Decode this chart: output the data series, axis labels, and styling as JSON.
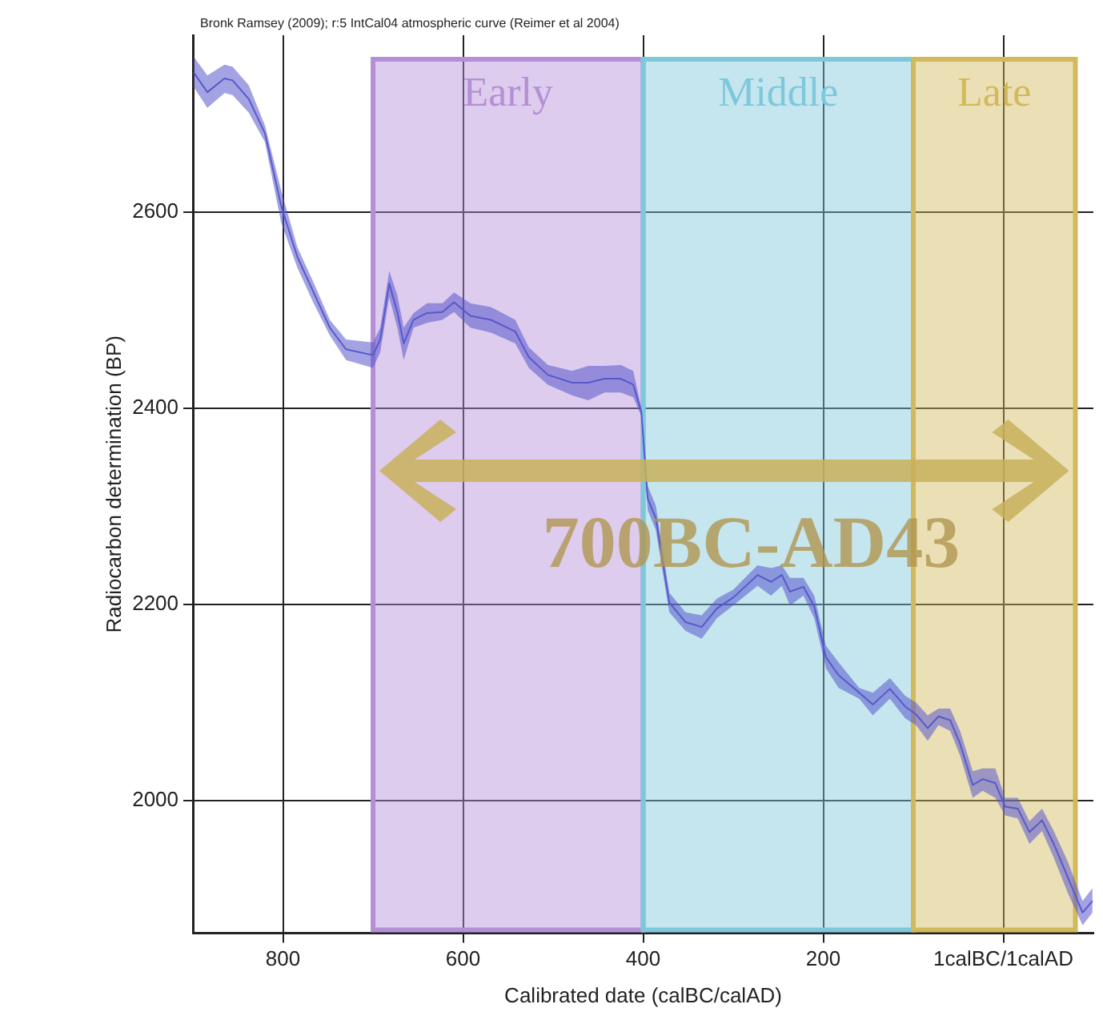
{
  "chart_data": {
    "type": "line",
    "xlabel": "Calibrated date (calBC/calAD)",
    "ylabel": "Radiocarbon determination (BP)",
    "annotations": [
      "Bronk Ramsey (2009); r:5 IntCal04 atmospheric curve (Reimer et al 2004)",
      "700BC-AD43"
    ],
    "xlim": [
      900,
      -100
    ],
    "xticks": [
      800,
      600,
      400,
      200,
      {
        "value": 0,
        "label": "1calBC/1calAD"
      }
    ],
    "ylim": [
      1865,
      2780
    ],
    "yticks": [
      2000,
      2200,
      2400,
      2600
    ],
    "grid": true,
    "legend": false,
    "marker": "none",
    "line_style": "solid",
    "bands": [
      {
        "axis": "x",
        "from": 700,
        "to": 400,
        "label": "Early",
        "color": "#b48fd6"
      },
      {
        "axis": "x",
        "from": 400,
        "to": 100,
        "label": "Middle",
        "color": "#7ec8dc"
      },
      {
        "axis": "x",
        "from": 100,
        "to": -80,
        "label": "Late",
        "color": "#d2b95a"
      }
    ],
    "series": [
      {
        "color": "#5858cc",
        "x": [
          899,
          884,
          865,
          856,
          838,
          820,
          802,
          784,
          766,
          748,
          730,
          700,
          692,
          682,
          673,
          666,
          655,
          640,
          623,
          610,
          592,
          569,
          542,
          527,
          506,
          479,
          461,
          443,
          425,
          411,
          402,
          395,
          386,
          371,
          353,
          335,
          318,
          300,
          273,
          258,
          246,
          237,
          222,
          210,
          197,
          183,
          160,
          145,
          126,
          109,
          97,
          84,
          72,
          59,
          48,
          34,
          23,
          9,
          -2,
          -16,
          -29,
          -43,
          -56,
          -72,
          -88,
          -99
        ],
        "values": [
          2742,
          2722,
          2736,
          2734,
          2715,
          2680,
          2606,
          2554,
          2518,
          2482,
          2460,
          2454,
          2470,
          2527,
          2498,
          2466,
          2490,
          2497,
          2498,
          2508,
          2494,
          2490,
          2478,
          2452,
          2434,
          2426,
          2426,
          2430,
          2430,
          2424,
          2396,
          2308,
          2288,
          2202,
          2182,
          2177,
          2196,
          2207,
          2230,
          2223,
          2230,
          2213,
          2218,
          2198,
          2146,
          2128,
          2110,
          2098,
          2114,
          2096,
          2088,
          2074,
          2086,
          2082,
          2058,
          2016,
          2022,
          2018,
          1994,
          1992,
          1968,
          1980,
          1956,
          1921,
          1886,
          1898
        ],
        "upper": [
          2758,
          2739,
          2750,
          2748,
          2729,
          2688,
          2622,
          2564,
          2528,
          2490,
          2470,
          2467,
          2482,
          2540,
          2515,
          2482,
          2497,
          2507,
          2507,
          2518,
          2507,
          2503,
          2490,
          2462,
          2444,
          2438,
          2443,
          2443,
          2444,
          2438,
          2400,
          2321,
          2301,
          2212,
          2192,
          2189,
          2206,
          2215,
          2240,
          2237,
          2240,
          2227,
          2227,
          2209,
          2158,
          2141,
          2115,
          2110,
          2125,
          2107,
          2100,
          2087,
          2094,
          2094,
          2071,
          2030,
          2033,
          2033,
          2003,
          2003,
          1979,
          1992,
          1969,
          1937,
          1898,
          1911
        ],
        "lower": [
          2727,
          2706,
          2721,
          2719,
          2701,
          2671,
          2589,
          2543,
          2507,
          2474,
          2449,
          2441,
          2457,
          2513,
          2482,
          2449,
          2482,
          2487,
          2490,
          2498,
          2482,
          2477,
          2466,
          2441,
          2424,
          2413,
          2408,
          2416,
          2416,
          2411,
          2392,
          2296,
          2276,
          2192,
          2173,
          2165,
          2186,
          2199,
          2219,
          2209,
          2219,
          2199,
          2209,
          2186,
          2135,
          2115,
          2104,
          2087,
          2104,
          2084,
          2077,
          2061,
          2077,
          2071,
          2046,
          2003,
          2010,
          2003,
          1985,
          1982,
          1956,
          1969,
          1942,
          1905,
          1873,
          1886
        ]
      }
    ]
  }
}
